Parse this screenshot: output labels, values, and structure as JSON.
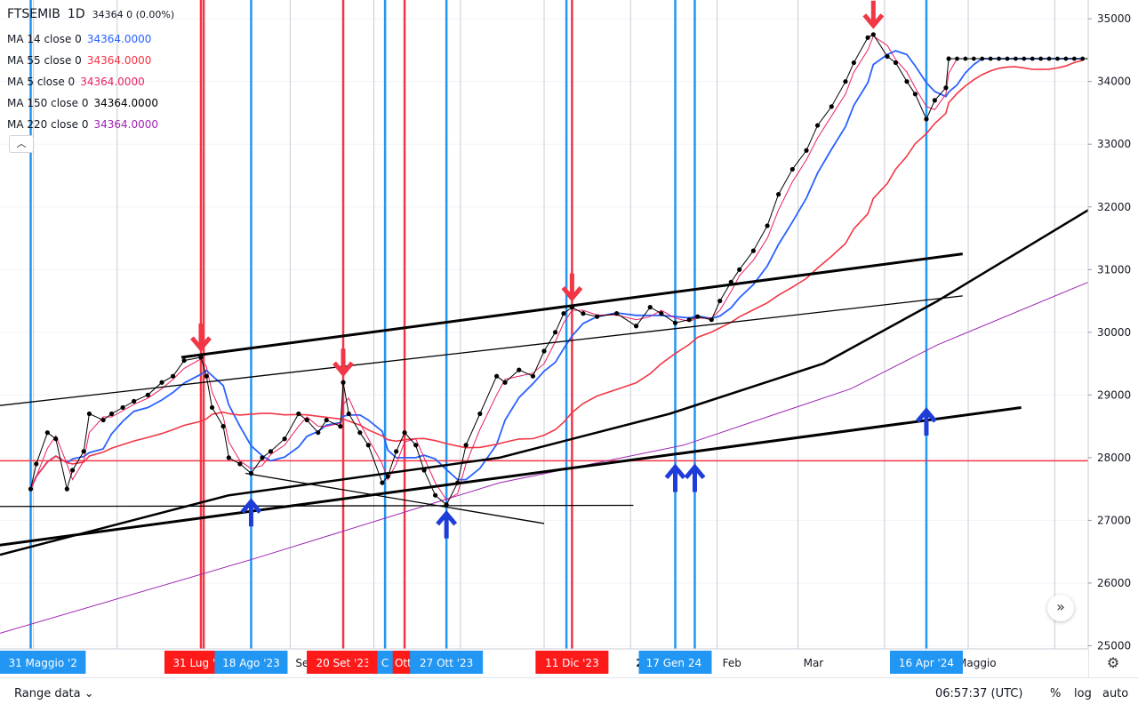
{
  "chart_data": {
    "type": "line",
    "symbol": "FTSEMIB",
    "interval": "1D",
    "header_value": "34364  0 (0.00%)",
    "x_tick_labels": [
      "Set",
      "2024",
      "Feb",
      "Mar",
      "Apr",
      "Maggio"
    ],
    "x_tick_bold": "2024",
    "y_ticks": [
      25000,
      26000,
      27000,
      28000,
      29000,
      30000,
      31000,
      32000,
      33000,
      34000,
      35000
    ],
    "ylim": [
      24950,
      35300
    ],
    "last_value": 34364,
    "indicators": [
      {
        "name": "MA 14 close 0",
        "value": "34364.0000",
        "color": "#2962ff"
      },
      {
        "name": "MA 55 close 0",
        "value": "34364.0000",
        "color": "#f23645"
      },
      {
        "name": "MA 5 close 0",
        "value": "34364.0000",
        "color": "#e91e63"
      },
      {
        "name": "MA 150 close 0",
        "value": "34364.0000",
        "color": "#000000"
      },
      {
        "name": "MA 220 close 0",
        "value": "34364.0000",
        "color": "#9c27b0"
      }
    ],
    "price_series": [
      {
        "date": "2023-05-31",
        "v": 27500
      },
      {
        "date": "2023-06-02",
        "v": 27900
      },
      {
        "date": "2023-06-06",
        "v": 28400
      },
      {
        "date": "2023-06-09",
        "v": 28300
      },
      {
        "date": "2023-06-13",
        "v": 27500
      },
      {
        "date": "2023-06-15",
        "v": 27800
      },
      {
        "date": "2023-06-19",
        "v": 28100
      },
      {
        "date": "2023-06-21",
        "v": 28700
      },
      {
        "date": "2023-06-26",
        "v": 28600
      },
      {
        "date": "2023-06-29",
        "v": 28700
      },
      {
        "date": "2023-07-03",
        "v": 28800
      },
      {
        "date": "2023-07-07",
        "v": 28900
      },
      {
        "date": "2023-07-12",
        "v": 29000
      },
      {
        "date": "2023-07-17",
        "v": 29200
      },
      {
        "date": "2023-07-21",
        "v": 29300
      },
      {
        "date": "2023-07-25",
        "v": 29550
      },
      {
        "date": "2023-07-31",
        "v": 29600
      },
      {
        "date": "2023-08-02",
        "v": 29300
      },
      {
        "date": "2023-08-04",
        "v": 28800
      },
      {
        "date": "2023-08-08",
        "v": 28500
      },
      {
        "date": "2023-08-10",
        "v": 28000
      },
      {
        "date": "2023-08-14",
        "v": 27900
      },
      {
        "date": "2023-08-18",
        "v": 27750
      },
      {
        "date": "2023-08-22",
        "v": 28000
      },
      {
        "date": "2023-08-25",
        "v": 28100
      },
      {
        "date": "2023-08-30",
        "v": 28300
      },
      {
        "date": "2023-09-04",
        "v": 28700
      },
      {
        "date": "2023-09-07",
        "v": 28600
      },
      {
        "date": "2023-09-11",
        "v": 28400
      },
      {
        "date": "2023-09-14",
        "v": 28600
      },
      {
        "date": "2023-09-19",
        "v": 28500
      },
      {
        "date": "2023-09-20",
        "v": 29200
      },
      {
        "date": "2023-09-22",
        "v": 28700
      },
      {
        "date": "2023-09-26",
        "v": 28400
      },
      {
        "date": "2023-09-29",
        "v": 28200
      },
      {
        "date": "2023-10-04",
        "v": 27600
      },
      {
        "date": "2023-10-06",
        "v": 27700
      },
      {
        "date": "2023-10-09",
        "v": 28100
      },
      {
        "date": "2023-10-12",
        "v": 28400
      },
      {
        "date": "2023-10-16",
        "v": 28200
      },
      {
        "date": "2023-10-19",
        "v": 27800
      },
      {
        "date": "2023-10-23",
        "v": 27400
      },
      {
        "date": "2023-10-27",
        "v": 27250
      },
      {
        "date": "2023-10-31",
        "v": 27600
      },
      {
        "date": "2023-11-03",
        "v": 28200
      },
      {
        "date": "2023-11-08",
        "v": 28700
      },
      {
        "date": "2023-11-14",
        "v": 29300
      },
      {
        "date": "2023-11-17",
        "v": 29200
      },
      {
        "date": "2023-11-22",
        "v": 29400
      },
      {
        "date": "2023-11-27",
        "v": 29300
      },
      {
        "date": "2023-12-01",
        "v": 29700
      },
      {
        "date": "2023-12-05",
        "v": 30000
      },
      {
        "date": "2023-12-08",
        "v": 30300
      },
      {
        "date": "2023-12-11",
        "v": 30400
      },
      {
        "date": "2023-12-15",
        "v": 30300
      },
      {
        "date": "2023-12-20",
        "v": 30250
      },
      {
        "date": "2023-12-27",
        "v": 30300
      },
      {
        "date": "2024-01-03",
        "v": 30100
      },
      {
        "date": "2024-01-08",
        "v": 30400
      },
      {
        "date": "2024-01-12",
        "v": 30300
      },
      {
        "date": "2024-01-17",
        "v": 30150
      },
      {
        "date": "2024-01-22",
        "v": 30200
      },
      {
        "date": "2024-01-25",
        "v": 30250
      },
      {
        "date": "2024-01-30",
        "v": 30200
      },
      {
        "date": "2024-02-02",
        "v": 30500
      },
      {
        "date": "2024-02-06",
        "v": 30800
      },
      {
        "date": "2024-02-09",
        "v": 31000
      },
      {
        "date": "2024-02-14",
        "v": 31300
      },
      {
        "date": "2024-02-19",
        "v": 31700
      },
      {
        "date": "2024-02-23",
        "v": 32200
      },
      {
        "date": "2024-02-28",
        "v": 32600
      },
      {
        "date": "2024-03-04",
        "v": 32900
      },
      {
        "date": "2024-03-08",
        "v": 33300
      },
      {
        "date": "2024-03-13",
        "v": 33600
      },
      {
        "date": "2024-03-18",
        "v": 34000
      },
      {
        "date": "2024-03-21",
        "v": 34300
      },
      {
        "date": "2024-03-26",
        "v": 34700
      },
      {
        "date": "2024-03-28",
        "v": 34750
      },
      {
        "date": "2024-04-02",
        "v": 34400
      },
      {
        "date": "2024-04-05",
        "v": 34300
      },
      {
        "date": "2024-04-09",
        "v": 34000
      },
      {
        "date": "2024-04-12",
        "v": 33800
      },
      {
        "date": "2024-04-16",
        "v": 33400
      },
      {
        "date": "2024-04-19",
        "v": 33700
      },
      {
        "date": "2024-04-23",
        "v": 33900
      },
      {
        "date": "2024-04-24",
        "v": 34364
      }
    ],
    "projection": {
      "from": "2024-04-24",
      "to": "2024-06-13",
      "value": 34364
    },
    "trend_lines": [
      {
        "kind": "resistance",
        "from": {
          "date": "2023-07-24",
          "v": 29600
        },
        "to": {
          "date": "2024-04-29",
          "v": 31250
        },
        "color": "#000000",
        "width": "thick"
      },
      {
        "kind": "channel",
        "from": {
          "date": "2023-04-24",
          "v": 28700
        },
        "to": {
          "date": "2024-04-29",
          "v": 30580
        },
        "color": "#000000",
        "width": "thin"
      },
      {
        "kind": "support",
        "from": {
          "date": "2023-04-24",
          "v": 26450
        },
        "to": {
          "date": "2024-05-20",
          "v": 28800
        },
        "color": "#000000",
        "width": "thick"
      },
      {
        "kind": "horizontal",
        "from": {
          "date": "2023-04-24",
          "v": 27220
        },
        "to": {
          "date": "2024-01-02",
          "v": 27240
        },
        "color": "#000000",
        "width": "thin"
      },
      {
        "kind": "decline",
        "from": {
          "date": "2023-08-16",
          "v": 27750
        },
        "to": {
          "date": "2023-12-01",
          "v": 26950
        },
        "color": "#000000",
        "width": "thin"
      }
    ],
    "horizontal_levels": [
      {
        "value": 27950,
        "color": "#f23645"
      }
    ],
    "markers": [
      {
        "date": "2023-07-31",
        "dir": "down",
        "color": "#f23645"
      },
      {
        "date": "2023-08-18",
        "dir": "up",
        "color": "#1e3cd8"
      },
      {
        "date": "2023-09-20",
        "dir": "down",
        "color": "#f23645"
      },
      {
        "date": "2023-10-27",
        "dir": "up",
        "color": "#1e3cd8"
      },
      {
        "date": "2023-12-11",
        "dir": "down",
        "color": "#f23645"
      },
      {
        "date": "2024-01-17",
        "dir": "up",
        "color": "#1e3cd8"
      },
      {
        "date": "2024-01-24",
        "dir": "up",
        "color": "#1e3cd8"
      },
      {
        "date": "2024-03-28",
        "dir": "down",
        "color": "#f23645"
      },
      {
        "date": "2024-04-16",
        "dir": "up",
        "color": "#1e3cd8"
      }
    ],
    "vertical_lines": [
      {
        "date": "2023-07-31",
        "color": "#f23645",
        "label": "31 Lug '23"
      },
      {
        "date": "2023-08-18",
        "color": "#2196f3",
        "label": "18 Ago '23"
      },
      {
        "date": "2023-09-20",
        "color": "#f23645",
        "label": "20 Set '23"
      },
      {
        "date": "2023-10-12",
        "color": "#f23645",
        "label": "12 Ott '23"
      },
      {
        "date": "2023-10-27",
        "color": "#2196f3",
        "label": "27 Ott '23"
      },
      {
        "date": "2023-12-11",
        "color": "#f23645",
        "label": "11 Dic '23"
      },
      {
        "date": "2024-01-17",
        "color": "#2196f3",
        "label": "17 Gen '24"
      },
      {
        "date": "2024-01-24",
        "color": "#2196f3",
        "label": "24"
      },
      {
        "date": "2024-04-16",
        "color": "#2196f3",
        "label": "16 Apr '24"
      },
      {
        "date": "2023-05-31",
        "color": "#2196f3",
        "label": "31 Maggio '2"
      },
      {
        "date": "2023-08-01",
        "color": "#f23645",
        "label": ""
      },
      {
        "date": "2023-10-05",
        "color": "#2196f3",
        "label": "C"
      },
      {
        "date": "2023-12-09",
        "color": "#2196f3",
        "label": ""
      }
    ]
  },
  "ui": {
    "collapse_icon": "chevron-up-icon",
    "scroll_icon": "double-chevron-right-icon",
    "range_label": "Range data",
    "clock": "06:57:37 (UTC)",
    "pct_label": "%",
    "log_label": "log",
    "auto_label": "auto",
    "settings_icon": "gear-icon"
  }
}
